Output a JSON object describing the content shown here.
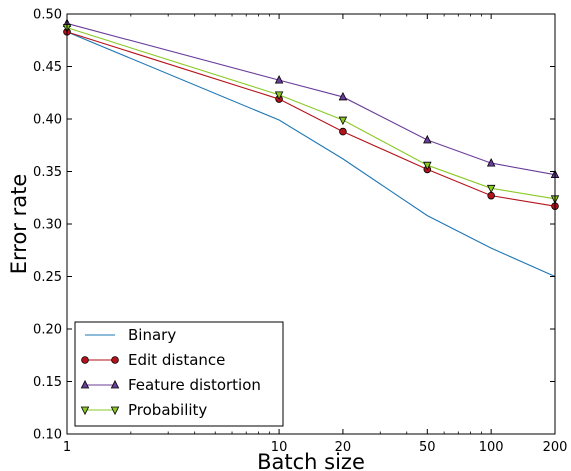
{
  "chart_data": {
    "type": "line",
    "xlabel": "Batch size",
    "ylabel": "Error rate",
    "xscale": "log",
    "x": [
      1,
      10,
      20,
      50,
      100,
      200
    ],
    "xticks": [
      "1",
      "10",
      "20",
      "50",
      "100",
      "200"
    ],
    "ylim": [
      0.1,
      0.5
    ],
    "yticks": [
      "0.10",
      "0.15",
      "0.20",
      "0.25",
      "0.30",
      "0.35",
      "0.40",
      "0.45",
      "0.50"
    ],
    "grid": false,
    "legend_position": "bottom-left",
    "series": [
      {
        "name": "Binary",
        "color": "#1f77b4",
        "marker": "none",
        "values": [
          0.483,
          0.399,
          0.362,
          0.308,
          0.277,
          0.25
        ]
      },
      {
        "name": "Edit distance",
        "color": "#b5121b",
        "marker": "circle",
        "values": [
          0.483,
          0.419,
          0.388,
          0.352,
          0.327,
          0.317
        ]
      },
      {
        "name": "Feature distortion",
        "color": "#6a3d9a",
        "marker": "triangle-up",
        "values": [
          0.491,
          0.437,
          0.421,
          0.38,
          0.358,
          0.347
        ]
      },
      {
        "name": "Probability",
        "color": "#8ac926",
        "marker": "triangle-down",
        "values": [
          0.487,
          0.423,
          0.399,
          0.356,
          0.334,
          0.324
        ]
      }
    ]
  }
}
